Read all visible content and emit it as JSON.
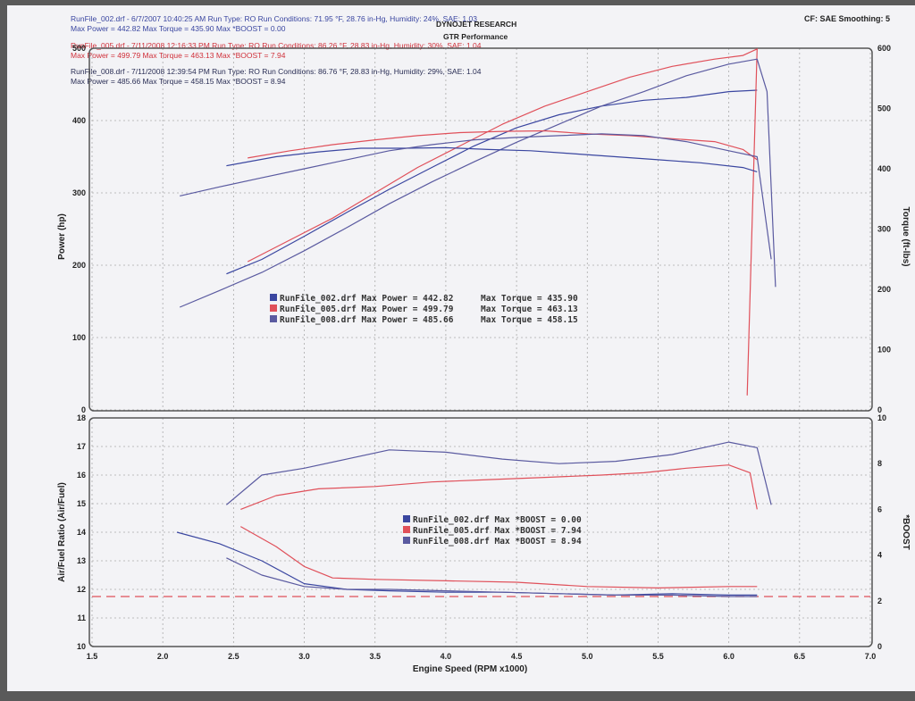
{
  "header": {
    "run1_line1": "RunFile_002.drf - 6/7/2007 10:40:25 AM  Run Type: RO  Run Conditions: 71.95 °F, 28.76 in-Hg,  Humidity: 24%, SAE: 1.03",
    "run1_line2": "Max Power = 442.82  Max Torque = 435.90  Max *BOOST = 0.00",
    "run2_line1": "RunFile_005.drf - 7/11/2008 12:16:33 PM  Run Type: RO  Run Conditions: 86.26 °F, 28.83 in-Hg,  Humidity: 30%, SAE: 1.04",
    "run2_line2": "Max Power = 499.79  Max Torque = 463.13  Max *BOOST = 7.94",
    "run3_line1": "RunFile_008.drf - 7/11/2008 12:39:54 PM  Run Type: RO  Run Conditions: 86.76 °F, 28.83 in-Hg,  Humidity: 29%, SAE: 1.04",
    "run3_line2": "Max Power = 485.66  Max Torque = 458.15  Max *BOOST = 8.94",
    "center_title": "DYNOJET RESEARCH",
    "center_subtitle": "GTR Performance",
    "cf_label": "CF: SAE  Smoothing: 5",
    "colors": {
      "run002": "#3a46a0",
      "run005": "#e0505a",
      "run008": "#5a5aa0"
    }
  },
  "chart_data": [
    {
      "type": "line",
      "xlabel": "Engine Speed (RPM x1000)",
      "ylabel": "Power (hp)",
      "y2label": "Torque (ft-lbs)",
      "xlim": [
        1.5,
        7.0
      ],
      "ylim": [
        0,
        500
      ],
      "y2lim": [
        0,
        600
      ],
      "x_ticks": [
        "1.5",
        "2.0",
        "2.5",
        "3.0",
        "3.5",
        "4.0",
        "4.5",
        "5.0",
        "5.5",
        "6.0",
        "6.5",
        "7.0"
      ],
      "y_ticks": [
        "0",
        "100",
        "200",
        "300",
        "400",
        "500"
      ],
      "y2_ticks": [
        "0",
        "100",
        "200",
        "300",
        "400",
        "500",
        "600"
      ],
      "grid": true,
      "legend": [
        {
          "label": "RunFile_002.drf Max Power = 442.82",
          "torque": "Max Torque = 435.90"
        },
        {
          "label": "RunFile_005.drf Max Power = 499.79",
          "torque": "Max Torque = 463.13"
        },
        {
          "label": "RunFile_008.drf Max Power = 485.66",
          "torque": "Max Torque = 458.15"
        }
      ],
      "series": [
        {
          "name": "RunFile_002.drf",
          "metric": "Power",
          "x": [
            2.45,
            2.7,
            3.0,
            3.3,
            3.6,
            3.9,
            4.2,
            4.5,
            4.8,
            5.1,
            5.4,
            5.7,
            6.0,
            6.2
          ],
          "y": [
            188,
            208,
            240,
            273,
            305,
            335,
            365,
            390,
            408,
            420,
            428,
            432,
            440,
            442
          ]
        },
        {
          "name": "RunFile_005.drf",
          "metric": "Power",
          "x": [
            2.6,
            2.9,
            3.2,
            3.5,
            3.8,
            4.1,
            4.4,
            4.7,
            5.0,
            5.3,
            5.6,
            5.9,
            6.1,
            6.2,
            6.13
          ],
          "y": [
            205,
            235,
            265,
            300,
            335,
            365,
            395,
            420,
            440,
            460,
            475,
            485,
            490,
            499,
            20
          ]
        },
        {
          "name": "RunFile_008.drf",
          "metric": "Power",
          "x": [
            2.12,
            2.4,
            2.7,
            3.0,
            3.3,
            3.6,
            3.9,
            4.2,
            4.5,
            4.8,
            5.1,
            5.4,
            5.7,
            6.0,
            6.2,
            6.27,
            6.33
          ],
          "y": [
            142,
            165,
            190,
            220,
            252,
            285,
            315,
            343,
            370,
            395,
            420,
            440,
            462,
            478,
            485,
            440,
            170
          ]
        },
        {
          "name": "RunFile_002.drf",
          "metric": "Torque",
          "x": [
            2.45,
            2.8,
            3.1,
            3.4,
            3.7,
            4.0,
            4.3,
            4.6,
            4.9,
            5.2,
            5.5,
            5.8,
            6.1,
            6.2
          ],
          "y": [
            405,
            420,
            428,
            434,
            434,
            435,
            432,
            430,
            425,
            420,
            415,
            410,
            402,
            395
          ]
        },
        {
          "name": "RunFile_005.drf",
          "metric": "Torque",
          "x": [
            2.6,
            2.9,
            3.2,
            3.5,
            3.8,
            4.1,
            4.4,
            4.7,
            5.0,
            5.3,
            5.6,
            5.9,
            6.1,
            6.2
          ],
          "y": [
            418,
            430,
            440,
            448,
            455,
            460,
            462,
            463,
            458,
            455,
            450,
            445,
            432,
            415
          ]
        },
        {
          "name": "RunFile_008.drf",
          "metric": "Torque",
          "x": [
            2.12,
            2.4,
            2.7,
            3.0,
            3.3,
            3.6,
            3.9,
            4.2,
            4.5,
            4.8,
            5.1,
            5.4,
            5.7,
            6.0,
            6.2,
            6.3
          ],
          "y": [
            355,
            370,
            385,
            400,
            415,
            430,
            440,
            448,
            452,
            455,
            458,
            455,
            445,
            430,
            420,
            250
          ]
        }
      ]
    },
    {
      "type": "line",
      "xlabel": "Engine Speed (RPM x1000)",
      "ylabel": "Air/Fuel Ratio (Air/Fuel)",
      "y2label": "*BOOST",
      "xlim": [
        1.5,
        7.0
      ],
      "ylim": [
        10,
        18
      ],
      "y2lim": [
        0,
        10
      ],
      "y_ticks": [
        "10",
        "11",
        "12",
        "13",
        "14",
        "15",
        "16",
        "17",
        "18"
      ],
      "y2_ticks": [
        "0",
        "2",
        "4",
        "6",
        "8",
        "10"
      ],
      "grid": true,
      "reference_line": 11.75,
      "legend": [
        {
          "label": "RunFile_002.drf Max *BOOST = 0.00"
        },
        {
          "label": "RunFile_005.drf Max *BOOST = 7.94"
        },
        {
          "label": "RunFile_008.drf Max *BOOST = 8.94"
        }
      ],
      "series": [
        {
          "name": "RunFile_002.drf",
          "metric": "AFR",
          "x": [
            2.1,
            2.4,
            2.7,
            3.0,
            3.3,
            3.6,
            4.0,
            4.4,
            4.8,
            5.2,
            5.6,
            6.0,
            6.2
          ],
          "y": [
            14.0,
            13.6,
            13.0,
            12.2,
            12.0,
            11.95,
            11.9,
            11.9,
            11.85,
            11.8,
            11.85,
            11.8,
            11.8
          ]
        },
        {
          "name": "RunFile_005.drf",
          "metric": "AFR",
          "x": [
            2.55,
            2.8,
            3.0,
            3.2,
            3.5,
            4.0,
            4.5,
            5.0,
            5.5,
            6.0,
            6.2
          ],
          "y": [
            14.2,
            13.5,
            12.8,
            12.4,
            12.35,
            12.3,
            12.25,
            12.1,
            12.05,
            12.1,
            12.1
          ]
        },
        {
          "name": "RunFile_008.drf",
          "metric": "AFR",
          "x": [
            2.45,
            2.7,
            3.0,
            3.3,
            3.6,
            4.0,
            4.4,
            4.8,
            5.2,
            5.6,
            6.0,
            6.2
          ],
          "y": [
            13.1,
            12.5,
            12.1,
            12.0,
            12.0,
            11.95,
            11.9,
            11.85,
            11.8,
            11.8,
            11.75,
            11.75
          ]
        },
        {
          "name": "RunFile_005.drf",
          "metric": "BOOST",
          "x": [
            2.55,
            2.8,
            3.1,
            3.5,
            3.9,
            4.3,
            4.7,
            5.1,
            5.4,
            5.7,
            6.0,
            6.15,
            6.2
          ],
          "y": [
            6.0,
            6.6,
            6.9,
            7.0,
            7.2,
            7.3,
            7.4,
            7.5,
            7.6,
            7.8,
            7.94,
            7.6,
            6.0
          ]
        },
        {
          "name": "RunFile_008.drf",
          "metric": "BOOST",
          "x": [
            2.45,
            2.7,
            3.0,
            3.3,
            3.6,
            4.0,
            4.4,
            4.8,
            5.2,
            5.6,
            6.0,
            6.2,
            6.3
          ],
          "y": [
            6.2,
            7.5,
            7.8,
            8.2,
            8.6,
            8.5,
            8.2,
            8.0,
            8.1,
            8.4,
            8.94,
            8.7,
            6.2
          ]
        }
      ]
    }
  ]
}
